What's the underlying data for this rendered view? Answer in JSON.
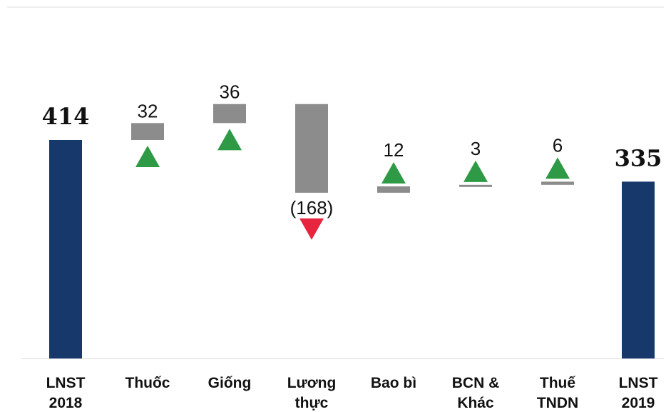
{
  "chart_data": {
    "type": "waterfall",
    "title": "",
    "xlabel": "",
    "ylabel": "",
    "grid": false,
    "legend": "none",
    "categories": [
      [
        "LNST",
        "2018"
      ],
      [
        "Thuốc"
      ],
      [
        "Giống"
      ],
      [
        "Lương",
        "thực"
      ],
      [
        "Bao bì"
      ],
      [
        "BCN &",
        "Khác"
      ],
      [
        "Thuế",
        "TNDN"
      ],
      [
        "LNST",
        "2019"
      ]
    ],
    "values": [
      414,
      32,
      36,
      -168,
      12,
      3,
      6,
      335
    ],
    "value_labels": [
      "414",
      "32",
      "36",
      "(168)",
      "12",
      "3",
      "6",
      "335"
    ],
    "kinds": [
      "total",
      "delta",
      "delta",
      "delta",
      "delta",
      "delta",
      "delta",
      "total"
    ],
    "colors": {
      "total": "#16386b",
      "delta": "#8c8c8c",
      "up": "#2e9a45",
      "down": "#e8253f",
      "axis": "#dcdcdc"
    }
  }
}
